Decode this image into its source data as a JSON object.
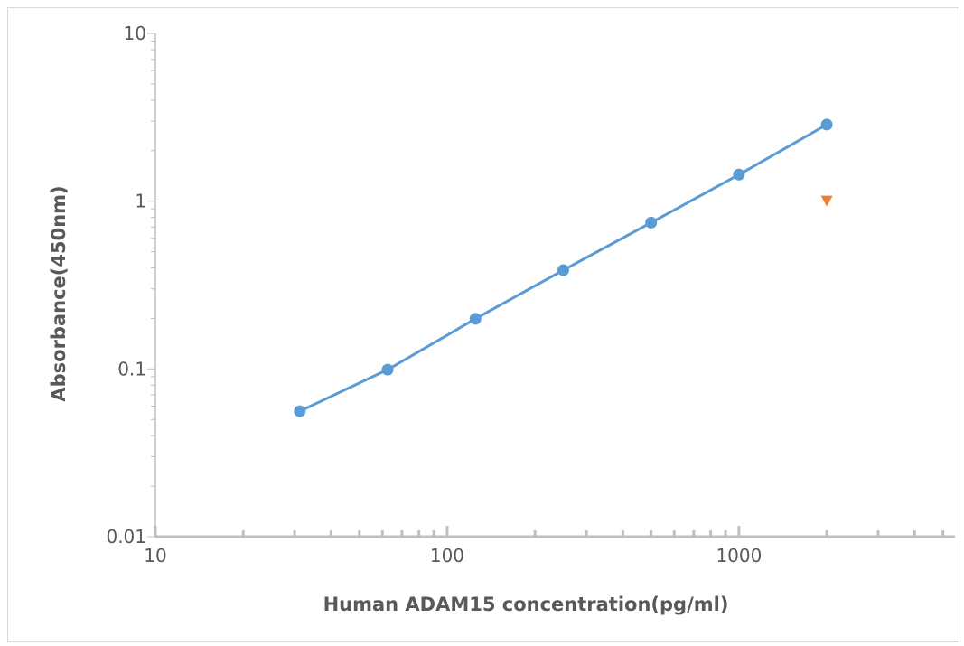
{
  "chart_data": {
    "type": "scatter",
    "title": "",
    "xlabel": "Human ADAM15 concentration(pg/ml)",
    "ylabel": "Absorbance(450nm)",
    "x_scale": "log",
    "y_scale": "log",
    "xlim": [
      10,
      5500
    ],
    "ylim": [
      0.01,
      10
    ],
    "x_tick_labels": [
      "10",
      "100",
      "1000"
    ],
    "y_tick_labels": [
      "0.01",
      "0.1",
      "1",
      "10"
    ],
    "grid": false,
    "series": [
      {
        "marker": "circle",
        "line": true,
        "color": "#5b9bd5",
        "x": [
          31.25,
          62.5,
          125,
          250,
          500,
          1000,
          2000
        ],
        "y": [
          0.056,
          0.099,
          0.199,
          0.388,
          0.745,
          1.44,
          2.86
        ]
      },
      {
        "marker": "triangle-down",
        "line": false,
        "color": "#ed7d31",
        "x": [
          2000
        ],
        "y": [
          1.0
        ]
      }
    ]
  }
}
